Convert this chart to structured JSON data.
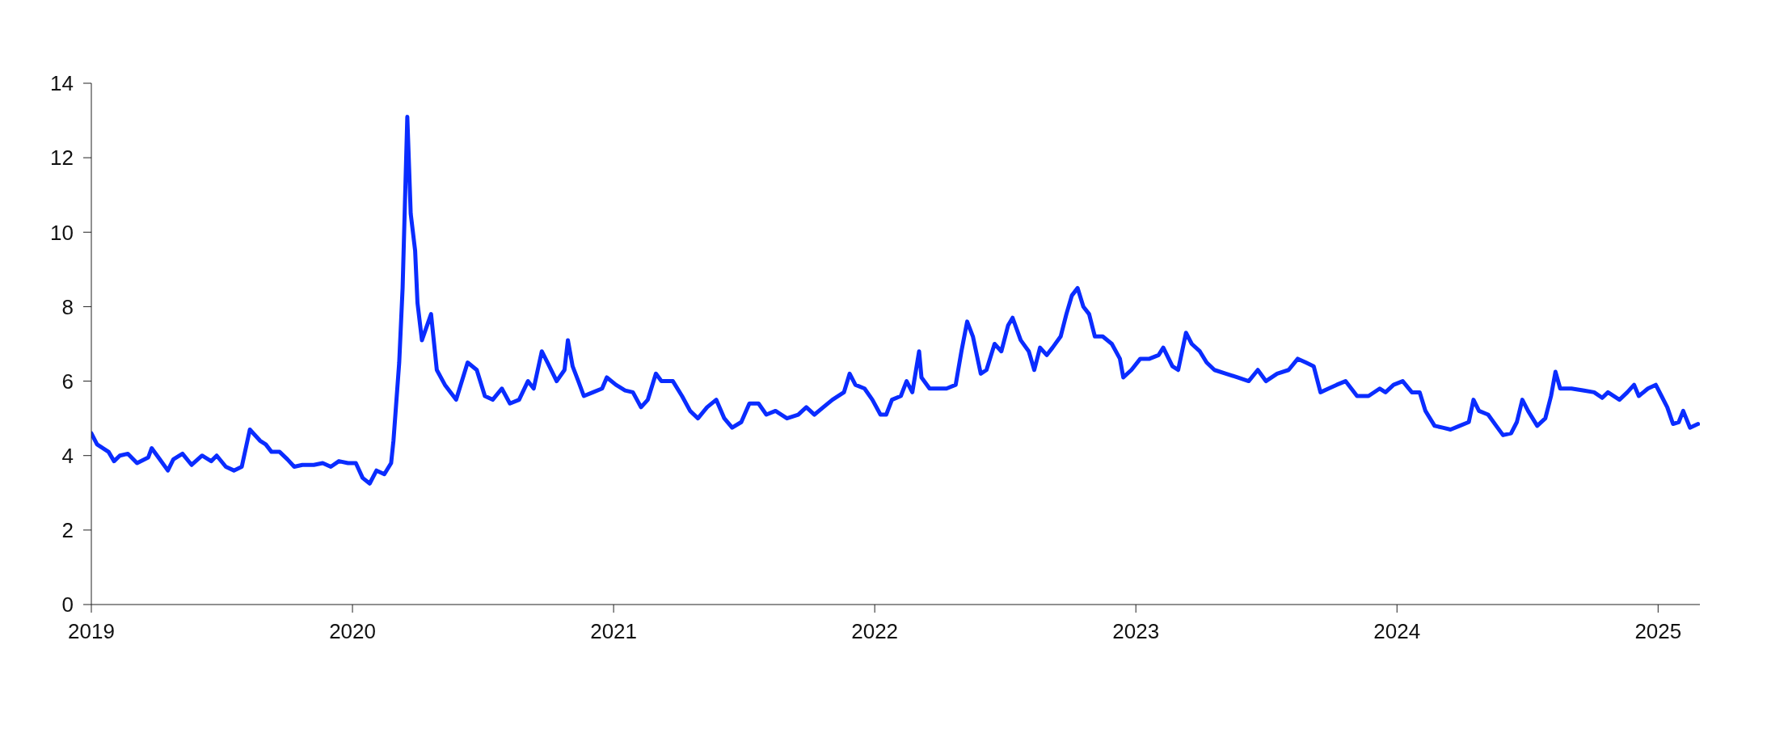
{
  "chart_data": {
    "type": "line",
    "x": [
      2019.0,
      2019.022,
      2019.066,
      2019.087,
      2019.109,
      2019.14,
      2019.175,
      2019.218,
      2019.231,
      2019.262,
      2019.293,
      2019.314,
      2019.349,
      2019.384,
      2019.424,
      2019.459,
      2019.48,
      2019.515,
      2019.546,
      2019.576,
      2019.607,
      2019.646,
      2019.668,
      2019.69,
      2019.721,
      2019.751,
      2019.777,
      2019.808,
      2019.852,
      2019.886,
      2019.917,
      2019.948,
      2019.983,
      2020.013,
      2020.039,
      2020.066,
      2020.092,
      2020.122,
      2020.148,
      2020.157,
      2020.179,
      2020.192,
      2020.21,
      2020.223,
      2020.24,
      2020.249,
      2020.266,
      2020.301,
      2020.323,
      2020.354,
      2020.397,
      2020.441,
      2020.476,
      2020.507,
      2020.537,
      2020.572,
      2020.603,
      2020.638,
      2020.672,
      2020.694,
      2020.725,
      2020.747,
      2020.782,
      2020.812,
      2020.825,
      2020.843,
      2020.865,
      2020.886,
      2020.921,
      2020.956,
      2020.974,
      2021.009,
      2021.044,
      2021.074,
      2021.105,
      2021.131,
      2021.162,
      2021.183,
      2021.227,
      2021.262,
      2021.293,
      2021.323,
      2021.358,
      2021.393,
      2021.424,
      2021.454,
      2021.489,
      2021.52,
      2021.555,
      2021.585,
      2021.62,
      2021.664,
      2021.707,
      2021.738,
      2021.769,
      2021.803,
      2021.838,
      2021.882,
      2021.904,
      2021.926,
      2021.961,
      2021.991,
      2022.022,
      2022.044,
      2022.066,
      2022.1,
      2022.122,
      2022.144,
      2022.17,
      2022.179,
      2022.21,
      2022.24,
      2022.275,
      2022.31,
      2022.332,
      2022.354,
      2022.376,
      2022.406,
      2022.428,
      2022.459,
      2022.485,
      2022.511,
      2022.528,
      2022.559,
      2022.59,
      2022.611,
      2022.633,
      2022.659,
      2022.681,
      2022.712,
      2022.734,
      2022.755,
      2022.777,
      2022.799,
      2022.821,
      2022.843,
      2022.873,
      2022.908,
      2022.939,
      2022.952,
      2022.983,
      2023.017,
      2023.052,
      2023.087,
      2023.105,
      2023.14,
      2023.162,
      2023.192,
      2023.214,
      2023.245,
      2023.271,
      2023.301,
      2023.345,
      2023.389,
      2023.432,
      2023.467,
      2023.498,
      2023.541,
      2023.585,
      2023.62,
      2023.651,
      2023.681,
      2023.707,
      2023.738,
      2023.769,
      2023.803,
      2023.825,
      2023.847,
      2023.891,
      2023.934,
      2023.956,
      2023.987,
      2024.022,
      2024.057,
      2024.087,
      2024.109,
      2024.144,
      2024.175,
      2024.205,
      2024.24,
      2024.275,
      2024.293,
      2024.314,
      2024.349,
      2024.38,
      2024.406,
      2024.437,
      2024.459,
      2024.48,
      2024.502,
      2024.537,
      2024.568,
      2024.59,
      2024.607,
      2024.625,
      2024.668,
      2024.712,
      2024.755,
      2024.786,
      2024.808,
      2024.852,
      2024.882,
      2024.908,
      2024.926,
      2024.961,
      2024.991,
      2025.013,
      2025.035,
      2025.057,
      2025.079,
      2025.096,
      2025.122,
      2025.153
    ],
    "series": [
      {
        "color": "#0a2cff",
        "values": [
          4.6,
          4.3,
          4.1,
          3.85,
          4.0,
          4.05,
          3.8,
          3.95,
          4.2,
          3.9,
          3.6,
          3.9,
          4.05,
          3.75,
          4.0,
          3.85,
          4.0,
          3.7,
          3.6,
          3.7,
          4.7,
          4.4,
          4.3,
          4.1,
          4.1,
          3.9,
          3.7,
          3.75,
          3.75,
          3.8,
          3.7,
          3.85,
          3.8,
          3.8,
          3.4,
          3.25,
          3.6,
          3.5,
          3.8,
          4.4,
          6.5,
          8.5,
          13.1,
          10.5,
          9.5,
          8.1,
          7.1,
          7.8,
          6.3,
          5.9,
          5.5,
          6.5,
          6.3,
          5.6,
          5.5,
          5.8,
          5.4,
          5.5,
          6.0,
          5.8,
          6.8,
          6.5,
          6.0,
          6.3,
          7.1,
          6.4,
          6.0,
          5.6,
          5.7,
          5.8,
          6.1,
          5.9,
          5.75,
          5.7,
          5.3,
          5.5,
          6.2,
          6.0,
          6.0,
          5.6,
          5.2,
          5.0,
          5.3,
          5.5,
          5.0,
          4.75,
          4.9,
          5.4,
          5.4,
          5.1,
          5.2,
          5.0,
          5.1,
          5.3,
          5.1,
          5.3,
          5.5,
          5.7,
          6.2,
          5.9,
          5.8,
          5.5,
          5.1,
          5.1,
          5.5,
          5.6,
          6.0,
          5.7,
          6.8,
          6.1,
          5.8,
          5.8,
          5.8,
          5.9,
          6.8,
          7.6,
          7.2,
          6.2,
          6.3,
          7.0,
          6.8,
          7.5,
          7.7,
          7.1,
          6.8,
          6.3,
          6.9,
          6.7,
          6.9,
          7.2,
          7.8,
          8.3,
          8.5,
          8.0,
          7.8,
          7.2,
          7.2,
          7.0,
          6.6,
          6.1,
          6.3,
          6.6,
          6.6,
          6.7,
          6.9,
          6.4,
          6.3,
          7.3,
          7.0,
          6.8,
          6.5,
          6.3,
          6.2,
          6.1,
          6.0,
          6.3,
          6.0,
          6.2,
          6.3,
          6.6,
          6.5,
          6.4,
          5.7,
          5.8,
          5.9,
          6.0,
          5.8,
          5.6,
          5.6,
          5.8,
          5.7,
          5.9,
          6.0,
          5.7,
          5.7,
          5.2,
          4.8,
          4.75,
          4.7,
          4.8,
          4.9,
          5.5,
          5.2,
          5.1,
          4.8,
          4.55,
          4.6,
          4.9,
          5.5,
          5.2,
          4.8,
          5.0,
          5.6,
          6.25,
          5.8,
          5.8,
          5.75,
          5.7,
          5.55,
          5.7,
          5.5,
          5.7,
          5.9,
          5.6,
          5.8,
          5.9,
          5.6,
          5.3,
          4.85,
          4.9,
          5.2,
          4.75,
          4.85
        ]
      }
    ],
    "xlim": [
      2019,
      2025.16
    ],
    "xticks": [
      2019,
      2020,
      2021,
      2022,
      2023,
      2024,
      2025
    ],
    "ylim": [
      0,
      14
    ],
    "yticks": [
      0,
      2,
      4,
      6,
      8,
      10,
      12,
      14
    ],
    "grid": false,
    "legend": false,
    "marker": "none",
    "line_style": "solid"
  }
}
